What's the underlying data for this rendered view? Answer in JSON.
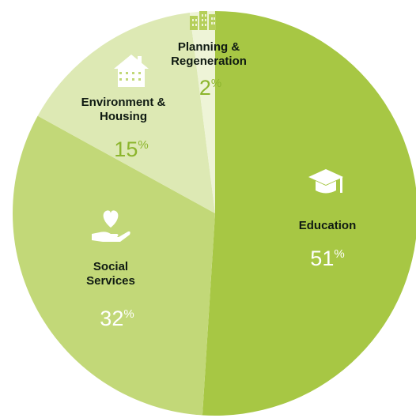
{
  "chart_data": {
    "type": "pie",
    "start": "top",
    "direction": "clockwise",
    "slices": [
      {
        "key": "education",
        "label": "Education",
        "value": 51,
        "percent_text": "51",
        "color": "#a7c744",
        "pct_color": "#ffffff",
        "icon": "graduation-cap-icon"
      },
      {
        "key": "social",
        "label": "Social\nServices",
        "value": 32,
        "percent_text": "32",
        "color": "#c2d878",
        "pct_color": "#ffffff",
        "icon": "heart-in-hand-icon"
      },
      {
        "key": "environment",
        "label": "Environment &\nHousing",
        "value": 15,
        "percent_text": "15",
        "color": "#dde9b4",
        "pct_color": "#8cb52d",
        "icon": "house-icon"
      },
      {
        "key": "planning",
        "label": "Planning &\nRegeneration",
        "value": 2,
        "percent_text": "2",
        "color": "#eef4d7",
        "pct_color": "#8cb52d",
        "icon": "buildings-icon"
      }
    ],
    "percent_symbol": "%"
  }
}
